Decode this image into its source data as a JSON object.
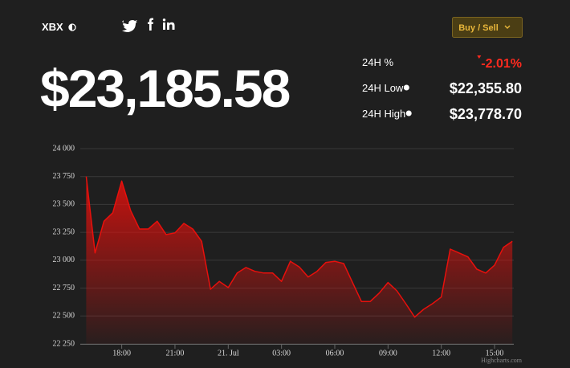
{
  "header": {
    "symbol": "XBX",
    "price": "$23,185.58",
    "button": "Buy / Sell",
    "stats": [
      {
        "label": "24H %",
        "value": "-2.01%"
      },
      {
        "label": "24H Low",
        "value": "$22,355.80"
      },
      {
        "label": "24H High",
        "value": "$23,778.70"
      }
    ]
  },
  "chart_data": {
    "type": "area",
    "color": "#e8100c",
    "grid": true,
    "credit": "Highcharts.com",
    "x": [
      "20. Jul 16:00",
      "20. Jul 16:30",
      "20. Jul 17:00",
      "20. Jul 17:30",
      "20. Jul 18:00",
      "20. Jul 18:30",
      "20. Jul 19:00",
      "20. Jul 19:30",
      "20. Jul 20:00",
      "20. Jul 20:30",
      "20. Jul 21:00",
      "20. Jul 21:30",
      "20. Jul 22:00",
      "20. Jul 22:30",
      "20. Jul 23:00",
      "20. Jul 23:30",
      "21. Jul 00:00",
      "21. Jul 00:30",
      "21. Jul 01:00",
      "21. Jul 01:30",
      "21. Jul 02:00",
      "21. Jul 02:30",
      "21. Jul 03:00",
      "21. Jul 03:30",
      "21. Jul 04:00",
      "21. Jul 04:30",
      "21. Jul 05:00",
      "21. Jul 05:30",
      "21. Jul 06:00",
      "21. Jul 06:30",
      "21. Jul 07:00",
      "21. Jul 07:30",
      "21. Jul 08:00",
      "21. Jul 08:30",
      "21. Jul 09:00",
      "21. Jul 09:30",
      "21. Jul 10:00",
      "21. Jul 10:30",
      "21. Jul 11:00",
      "21. Jul 11:30",
      "21. Jul 12:00",
      "21. Jul 12:30",
      "21. Jul 13:00",
      "21. Jul 13:30",
      "21. Jul 14:00",
      "21. Jul 14:30",
      "21. Jul 15:00",
      "21. Jul 15:30",
      "21. Jul 16:00"
    ],
    "values": [
      23750,
      23065,
      23350,
      23425,
      23710,
      23445,
      23280,
      23280,
      23350,
      23230,
      23245,
      23330,
      23280,
      23170,
      22740,
      22810,
      22755,
      22885,
      22935,
      22900,
      22885,
      22885,
      22810,
      22990,
      22940,
      22850,
      22900,
      22980,
      22990,
      22970,
      22800,
      22630,
      22630,
      22705,
      22800,
      22725,
      22610,
      22490,
      22560,
      22610,
      22670,
      23100,
      23065,
      23030,
      22920,
      22885,
      22955,
      23115,
      23170
    ],
    "xlim": [
      "20. Jul 15:40",
      "21. Jul 16:05"
    ],
    "xticks": [
      {
        "value": "20. Jul 18:00",
        "label": "18:00"
      },
      {
        "value": "20. Jul 21:00",
        "label": "21:00"
      },
      {
        "value": "21. Jul 00:00",
        "label": "21. Jul"
      },
      {
        "value": "21. Jul 03:00",
        "label": "03:00"
      },
      {
        "value": "21. Jul 06:00",
        "label": "06:00"
      },
      {
        "value": "21. Jul 09:00",
        "label": "09:00"
      },
      {
        "value": "21. Jul 12:00",
        "label": "12:00"
      },
      {
        "value": "21. Jul 15:00",
        "label": "15:00"
      }
    ],
    "ylim": [
      22250,
      24000
    ],
    "yticks": [
      {
        "value": 22250,
        "label": "22 250"
      },
      {
        "value": 22500,
        "label": "22 500"
      },
      {
        "value": 22750,
        "label": "22 750"
      },
      {
        "value": 23000,
        "label": "23 000"
      },
      {
        "value": 23250,
        "label": "23 250"
      },
      {
        "value": 23500,
        "label": "23 500"
      },
      {
        "value": 23750,
        "label": "23 750"
      },
      {
        "value": 24000,
        "label": "24 000"
      }
    ]
  }
}
